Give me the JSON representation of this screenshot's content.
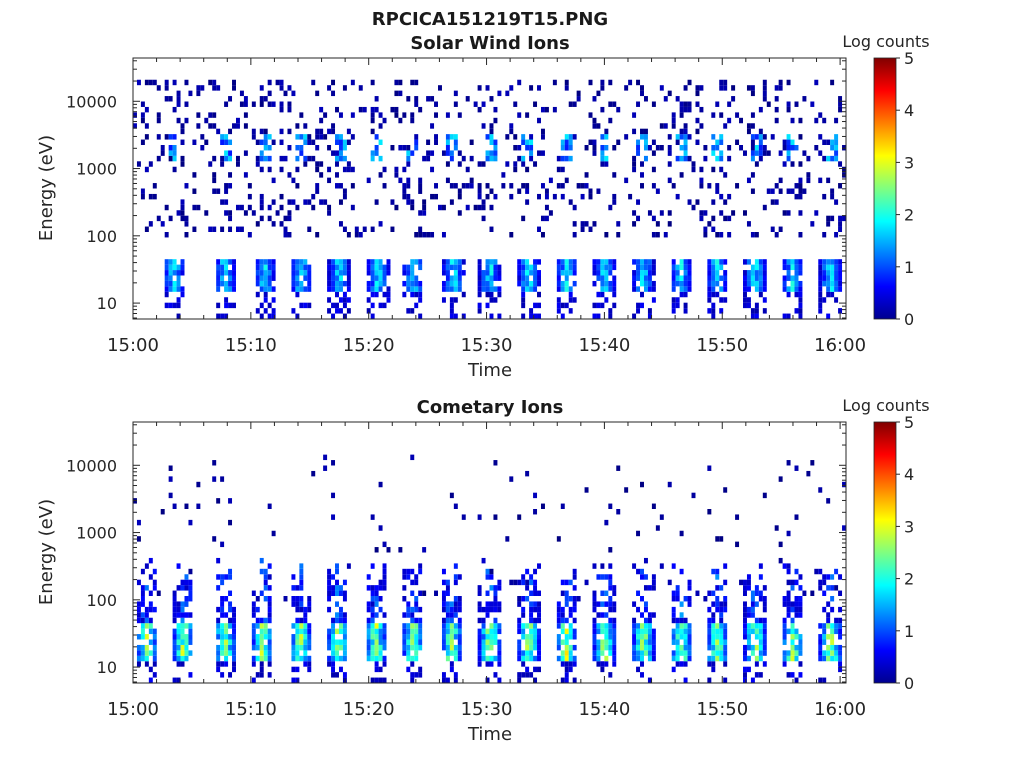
{
  "figure": {
    "title": "RPCICA151219T15.PNG"
  },
  "chart_data": [
    {
      "type": "heatmap",
      "title": "Solar Wind Ions",
      "xlabel": "Time",
      "ylabel": "Energy (eV)",
      "x_ticks": [
        "15:00",
        "15:10",
        "15:20",
        "15:30",
        "15:40",
        "15:50",
        "16:00"
      ],
      "x_range_minutes": [
        0,
        60.5
      ],
      "y_scale": "log",
      "y_ticks": [
        10,
        100,
        1000,
        10000
      ],
      "y_tick_labels": [
        "10",
        "100",
        "1000",
        "10000"
      ],
      "ylim": [
        5.8,
        44000
      ],
      "colorbar": {
        "label": "Log counts",
        "range": [
          0,
          5
        ],
        "ticks": [
          "0",
          "1",
          "2",
          "3",
          "4",
          "5"
        ],
        "colormap": "jet"
      },
      "features": {
        "burst_times_minutes": [
          3.5,
          7.8,
          11.2,
          14.3,
          17.5,
          20.8,
          23.8,
          27.2,
          30.3,
          33.6,
          36.8,
          40.0,
          43.3,
          46.5,
          49.6,
          52.8,
          56.0,
          59.2
        ],
        "low_energy_band_eV": [
          15,
          45
        ],
        "low_band_peak_log_counts": 2.0,
        "high_energy_band_eV": [
          1200,
          3000
        ],
        "high_band_peak_log_counts": 1.8,
        "background_log_counts": 0.3,
        "background_energy_range_eV": [
          100,
          20000
        ]
      }
    },
    {
      "type": "heatmap",
      "title": "Cometary Ions",
      "xlabel": "Time",
      "ylabel": "Energy (eV)",
      "x_ticks": [
        "15:00",
        "15:10",
        "15:20",
        "15:30",
        "15:40",
        "15:50",
        "16:00"
      ],
      "x_range_minutes": [
        0,
        60.5
      ],
      "y_scale": "log",
      "y_ticks": [
        10,
        100,
        1000,
        10000
      ],
      "y_tick_labels": [
        "10",
        "100",
        "1000",
        "10000"
      ],
      "ylim": [
        5.8,
        44000
      ],
      "colorbar": {
        "label": "Log counts",
        "range": [
          0,
          5
        ],
        "ticks": [
          "0",
          "1",
          "2",
          "3",
          "4",
          "5"
        ],
        "colormap": "jet"
      },
      "features": {
        "burst_times_minutes": [
          1.2,
          4.3,
          7.8,
          11.0,
          14.2,
          17.4,
          20.6,
          23.8,
          27.0,
          30.3,
          33.6,
          36.8,
          40.0,
          43.3,
          46.5,
          49.6,
          52.8,
          56.0,
          59.2
        ],
        "low_energy_band_eV": [
          12,
          45
        ],
        "low_band_peak_log_counts": 3.0,
        "plume_top_eV": [
          100,
          600
        ],
        "background_log_counts": 0.3,
        "background_energy_range_eV": [
          100,
          15000
        ]
      }
    }
  ]
}
